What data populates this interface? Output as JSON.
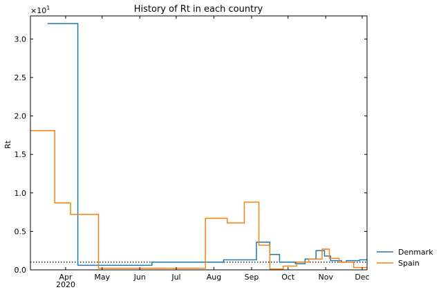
{
  "chart_data": {
    "type": "line",
    "title": "History of Rt in each country",
    "xlabel": "",
    "ylabel": "Rt",
    "y_multiplier_label": "×10",
    "y_multiplier_exponent": "1",
    "ylim": [
      0,
      3.3
    ],
    "xlim": [
      "2020-03-03",
      "2020-12-05"
    ],
    "grid": false,
    "legend_position": "right-bottom",
    "x_ticks": [
      {
        "date": "2020-04-01",
        "label": "Apr",
        "sublabel": "2020"
      },
      {
        "date": "2020-05-01",
        "label": "May",
        "sublabel": ""
      },
      {
        "date": "2020-06-01",
        "label": "Jun",
        "sublabel": ""
      },
      {
        "date": "2020-07-01",
        "label": "Jul",
        "sublabel": ""
      },
      {
        "date": "2020-08-01",
        "label": "Aug",
        "sublabel": ""
      },
      {
        "date": "2020-09-01",
        "label": "Sep",
        "sublabel": ""
      },
      {
        "date": "2020-10-01",
        "label": "Oct",
        "sublabel": ""
      },
      {
        "date": "2020-11-01",
        "label": "Nov",
        "sublabel": ""
      },
      {
        "date": "2020-12-01",
        "label": "Dec",
        "sublabel": ""
      }
    ],
    "y_ticks": [
      {
        "value": 0.0,
        "label": "0.0"
      },
      {
        "value": 0.5,
        "label": "0.5"
      },
      {
        "value": 1.0,
        "label": "1.0"
      },
      {
        "value": 1.5,
        "label": "1.5"
      },
      {
        "value": 2.0,
        "label": "2.0"
      },
      {
        "value": 2.5,
        "label": "2.5"
      },
      {
        "value": 3.0,
        "label": "3.0"
      }
    ],
    "reference_line": {
      "y": 0.1,
      "style": "dotted",
      "color": "#000000"
    },
    "series": [
      {
        "name": "Denmark",
        "color": "#1f77b4",
        "step": true,
        "points": [
          [
            "2020-03-17",
            3.2
          ],
          [
            "2020-04-11",
            0.06
          ],
          [
            "2020-06-11",
            0.1
          ],
          [
            "2020-08-09",
            0.13
          ],
          [
            "2020-09-05",
            0.36
          ],
          [
            "2020-09-16",
            0.2
          ],
          [
            "2020-09-24",
            0.1
          ],
          [
            "2020-10-07",
            0.08
          ],
          [
            "2020-10-15",
            0.14
          ],
          [
            "2020-10-24",
            0.25
          ],
          [
            "2020-10-31",
            0.18
          ],
          [
            "2020-11-05",
            0.12
          ],
          [
            "2020-11-14",
            0.1
          ],
          [
            "2020-11-18",
            0.12
          ],
          [
            "2020-11-29",
            0.13
          ],
          [
            "2020-12-05",
            0.13
          ]
        ]
      },
      {
        "name": "Spain",
        "color": "#ff7f0e",
        "step": true,
        "points": [
          [
            "2020-03-03",
            1.81
          ],
          [
            "2020-03-23",
            0.87
          ],
          [
            "2020-04-05",
            0.72
          ],
          [
            "2020-04-28",
            0.02
          ],
          [
            "2020-07-25",
            0.67
          ],
          [
            "2020-08-12",
            0.61
          ],
          [
            "2020-08-26",
            0.88
          ],
          [
            "2020-09-07",
            0.32
          ],
          [
            "2020-09-16",
            0.01
          ],
          [
            "2020-09-27",
            0.05
          ],
          [
            "2020-10-08",
            0.1
          ],
          [
            "2020-10-18",
            0.14
          ],
          [
            "2020-10-29",
            0.27
          ],
          [
            "2020-11-04",
            0.15
          ],
          [
            "2020-11-12",
            0.1
          ],
          [
            "2020-11-24",
            0.03
          ],
          [
            "2020-12-05",
            0.03
          ]
        ]
      }
    ]
  }
}
